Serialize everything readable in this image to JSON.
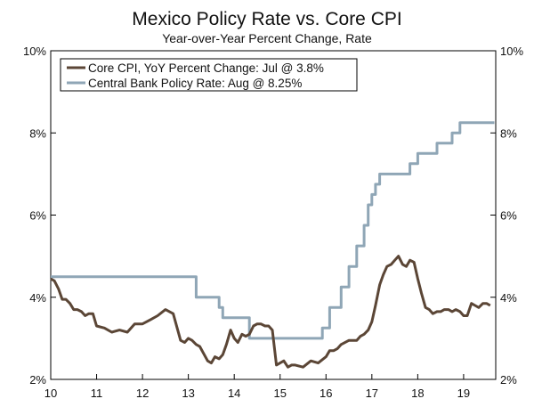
{
  "chart_data": {
    "type": "line",
    "title": "Mexico Policy Rate vs. Core CPI",
    "subtitle": "Year-over-Year Percent Change, Rate",
    "xlabel": "",
    "ylabel": "",
    "xlim": [
      2010,
      2019.7
    ],
    "ylim": [
      2,
      10
    ],
    "x_ticks": [
      2010,
      2011,
      2012,
      2013,
      2014,
      2015,
      2016,
      2017,
      2018,
      2019
    ],
    "x_tick_labels": [
      "10",
      "11",
      "12",
      "13",
      "14",
      "15",
      "16",
      "17",
      "18",
      "19"
    ],
    "y_ticks": [
      2,
      4,
      6,
      8,
      10
    ],
    "y_tick_labels": [
      "2%",
      "4%",
      "6%",
      "8%",
      "10%"
    ],
    "legend_position": "top-left",
    "series": [
      {
        "name": "Core CPI, YoY Percent Change: Jul @ 3.8%",
        "color": "#5b4636",
        "x": [
          2010.0,
          2010.08,
          2010.17,
          2010.25,
          2010.33,
          2010.42,
          2010.5,
          2010.58,
          2010.67,
          2010.75,
          2010.83,
          2010.92,
          2011.0,
          2011.17,
          2011.33,
          2011.5,
          2011.67,
          2011.83,
          2012.0,
          2012.17,
          2012.33,
          2012.5,
          2012.67,
          2012.83,
          2012.92,
          2013.0,
          2013.08,
          2013.17,
          2013.25,
          2013.42,
          2013.5,
          2013.58,
          2013.67,
          2013.75,
          2013.83,
          2013.92,
          2014.0,
          2014.08,
          2014.17,
          2014.25,
          2014.33,
          2014.42,
          2014.5,
          2014.58,
          2014.67,
          2014.75,
          2014.83,
          2014.92,
          2015.0,
          2015.08,
          2015.17,
          2015.25,
          2015.33,
          2015.5,
          2015.67,
          2015.83,
          2016.0,
          2016.08,
          2016.17,
          2016.25,
          2016.33,
          2016.5,
          2016.67,
          2016.75,
          2016.83,
          2016.92,
          2017.0,
          2017.08,
          2017.17,
          2017.25,
          2017.33,
          2017.42,
          2017.5,
          2017.58,
          2017.67,
          2017.75,
          2017.83,
          2017.92,
          2018.0,
          2018.08,
          2018.17,
          2018.25,
          2018.33,
          2018.42,
          2018.5,
          2018.58,
          2018.67,
          2018.75,
          2018.83,
          2018.92,
          2019.0,
          2019.08,
          2019.17,
          2019.25,
          2019.33,
          2019.42,
          2019.5,
          2019.58
        ],
        "values": [
          4.45,
          4.4,
          4.2,
          3.95,
          3.95,
          3.85,
          3.7,
          3.7,
          3.65,
          3.55,
          3.6,
          3.6,
          3.3,
          3.25,
          3.15,
          3.2,
          3.15,
          3.35,
          3.35,
          3.45,
          3.55,
          3.7,
          3.6,
          2.95,
          2.9,
          3.0,
          2.95,
          2.85,
          2.8,
          2.45,
          2.4,
          2.55,
          2.5,
          2.6,
          2.85,
          3.2,
          3.0,
          2.9,
          3.1,
          3.05,
          3.1,
          3.3,
          3.35,
          3.35,
          3.3,
          3.3,
          3.2,
          2.35,
          2.4,
          2.45,
          2.3,
          2.35,
          2.35,
          2.3,
          2.45,
          2.4,
          2.55,
          2.7,
          2.7,
          2.75,
          2.85,
          2.95,
          2.95,
          3.05,
          3.1,
          3.2,
          3.4,
          3.8,
          4.3,
          4.55,
          4.75,
          4.8,
          4.9,
          5.0,
          4.8,
          4.75,
          4.9,
          4.85,
          4.45,
          4.1,
          3.75,
          3.7,
          3.6,
          3.65,
          3.65,
          3.7,
          3.7,
          3.65,
          3.7,
          3.65,
          3.55,
          3.55,
          3.85,
          3.8,
          3.75,
          3.85,
          3.85,
          3.8
        ]
      },
      {
        "name": "Central Bank Policy Rate: Aug @ 8.25%",
        "color": "#8fa6b6",
        "x": [
          2010.0,
          2013.17,
          2013.17,
          2013.67,
          2013.67,
          2013.75,
          2013.75,
          2014.33,
          2014.33,
          2015.92,
          2015.92,
          2016.08,
          2016.08,
          2016.33,
          2016.33,
          2016.5,
          2016.5,
          2016.67,
          2016.67,
          2016.83,
          2016.83,
          2016.92,
          2016.92,
          2017.0,
          2017.0,
          2017.08,
          2017.08,
          2017.17,
          2017.17,
          2017.25,
          2017.25,
          2017.33,
          2017.33,
          2017.42,
          2017.42,
          2017.83,
          2017.83,
          2017.92,
          2017.92,
          2018.0,
          2018.0,
          2018.17,
          2018.17,
          2018.42,
          2018.42,
          2018.75,
          2018.75,
          2018.92,
          2018.92,
          2019.67
        ],
        "values": [
          4.5,
          4.5,
          4.0,
          4.0,
          3.75,
          3.75,
          3.5,
          3.5,
          3.0,
          3.0,
          3.25,
          3.25,
          3.75,
          3.75,
          4.25,
          4.25,
          4.75,
          4.75,
          5.25,
          5.25,
          5.75,
          5.75,
          6.25,
          6.25,
          6.5,
          6.5,
          6.75,
          6.75,
          7.0,
          7.0,
          7.0,
          7.0,
          7.0,
          7.0,
          7.0,
          7.0,
          7.25,
          7.25,
          7.25,
          7.25,
          7.5,
          7.5,
          7.5,
          7.5,
          7.75,
          7.75,
          8.0,
          8.0,
          8.25,
          8.25
        ]
      }
    ]
  }
}
